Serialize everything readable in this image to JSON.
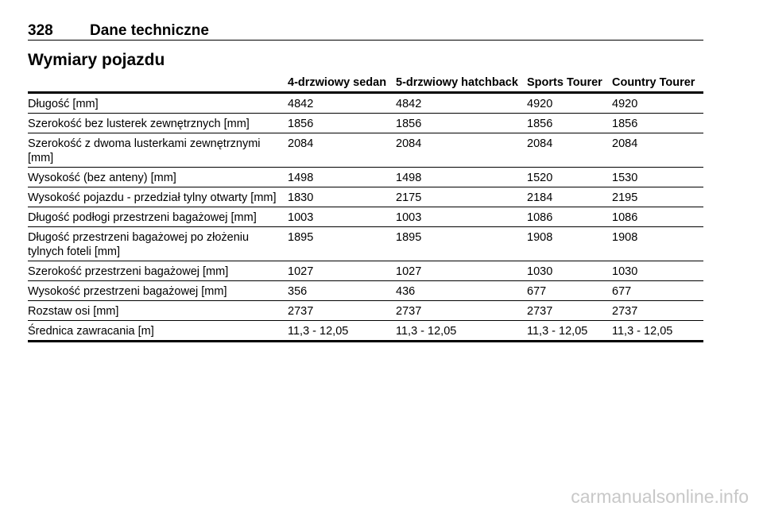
{
  "header": {
    "page_number": "328",
    "section": "Dane techniczne"
  },
  "title": "Wymiary pojazdu",
  "table": {
    "columns": [
      "4-drzwiowy sedan",
      "5-drzwiowy hatchback",
      "Sports Tourer",
      "Country Tourer"
    ],
    "rows": [
      [
        "Długość [mm]",
        "4842",
        "4842",
        "4920",
        "4920"
      ],
      [
        "Szerokość bez lusterek zewnętrznych [mm]",
        "1856",
        "1856",
        "1856",
        "1856"
      ],
      [
        "Szerokość z dwoma lusterkami zewnętrznymi [mm]",
        "2084",
        "2084",
        "2084",
        "2084"
      ],
      [
        "Wysokość (bez anteny) [mm]",
        "1498",
        "1498",
        "1520",
        "1530"
      ],
      [
        "Wysokość pojazdu - przedział tylny otwarty [mm]",
        "1830",
        "2175",
        "2184",
        "2195"
      ],
      [
        "Długość podłogi przestrzeni bagażowej [mm]",
        "1003",
        "1003",
        "1086",
        "1086"
      ],
      [
        "Długość przestrzeni bagażowej po złożeniu tylnych foteli [mm]",
        "1895",
        "1895",
        "1908",
        "1908"
      ],
      [
        "Szerokość przestrzeni bagażowej [mm]",
        "1027",
        "1027",
        "1030",
        "1030"
      ],
      [
        "Wysokość przestrzeni bagażowej [mm]",
        "356",
        "436",
        "677",
        "677"
      ],
      [
        "Rozstaw osi [mm]",
        "2737",
        "2737",
        "2737",
        "2737"
      ],
      [
        "Średnica zawracania [m]",
        "11,3 - 12,05",
        "11,3 - 12,05",
        "11,3 - 12,05",
        "11,3 - 12,05"
      ]
    ]
  },
  "watermark": "carmanualsonline.info"
}
